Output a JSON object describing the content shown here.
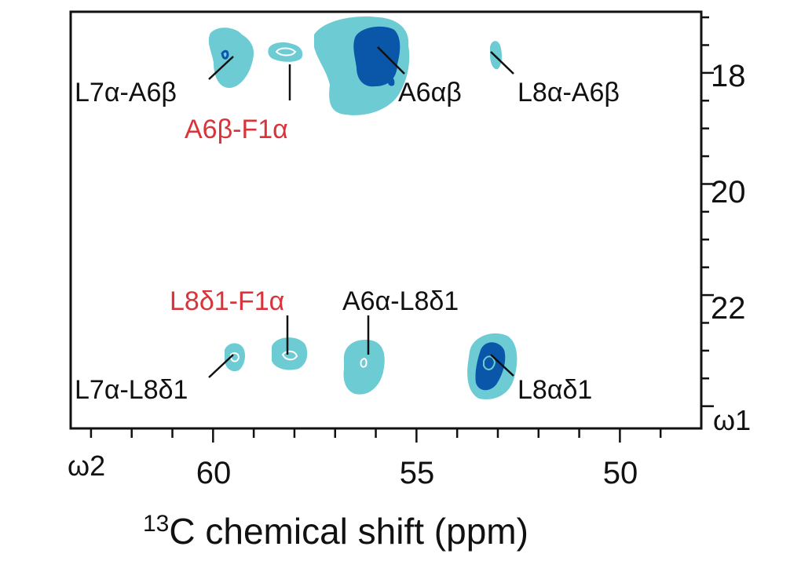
{
  "colors": {
    "light_contour": "#6ccbd3",
    "dark_contour": "#0a56a8",
    "black_label": "#111111",
    "red_label": "#d9343a",
    "background": "#ffffff"
  },
  "chart_data": {
    "type": "2D NMR contour spectrum",
    "title": "",
    "xlabel_sup": "13",
    "xlabel_main": "C chemical shift (ppm)",
    "x_axis_name": "ω2",
    "y_axis_name": "ω1",
    "xlim": [
      63.5,
      48.0
    ],
    "ylim": [
      16.9,
      24.4
    ],
    "x_ticks": [
      60,
      55,
      50
    ],
    "x_tick_labels": [
      "60",
      "55",
      "50"
    ],
    "y_ticks": [
      18,
      20,
      22
    ],
    "y_tick_labels": [
      "18",
      "20",
      "22"
    ],
    "y_axis_side": "right",
    "grid": false,
    "legend": "none",
    "peaks": [
      {
        "label": "L7α-A6β",
        "label_color": "red_black",
        "x": 59.4,
        "y": 17.6,
        "intensity": "strong"
      },
      {
        "label": "A6β-F1α",
        "x": 58.0,
        "y": 17.6,
        "intensity": "weak"
      },
      {
        "label": "A6αβ",
        "x": 55.9,
        "y": 17.6,
        "intensity": "strong"
      },
      {
        "label": "L8α-A6β",
        "x": 52.9,
        "y": 17.6,
        "intensity": "weak"
      },
      {
        "label": "L7α-L8δ1",
        "x": 59.5,
        "y": 23.3,
        "intensity": "weak"
      },
      {
        "label": "L8δ1-F1α",
        "x": 58.1,
        "y": 23.3,
        "intensity": "weak"
      },
      {
        "label": "A6α-L8δ1",
        "x": 56.2,
        "y": 23.3,
        "intensity": "medium"
      },
      {
        "label": "L8αδ1",
        "x": 53.2,
        "y": 23.3,
        "intensity": "strong"
      }
    ],
    "annotations": [
      {
        "text": "L7α-A6β",
        "color": "black"
      },
      {
        "text": "A6β-F1α",
        "color": "red"
      },
      {
        "text": "A6αβ",
        "color": "black"
      },
      {
        "text": "L8α-A6β",
        "color": "black"
      },
      {
        "text": "L8δ1-F1α",
        "color": "red"
      },
      {
        "text": "A6α-L8δ1",
        "color": "black"
      },
      {
        "text": "L7α-L8δ1",
        "color": "black"
      },
      {
        "text": "L8αδ1",
        "color": "black"
      }
    ]
  }
}
